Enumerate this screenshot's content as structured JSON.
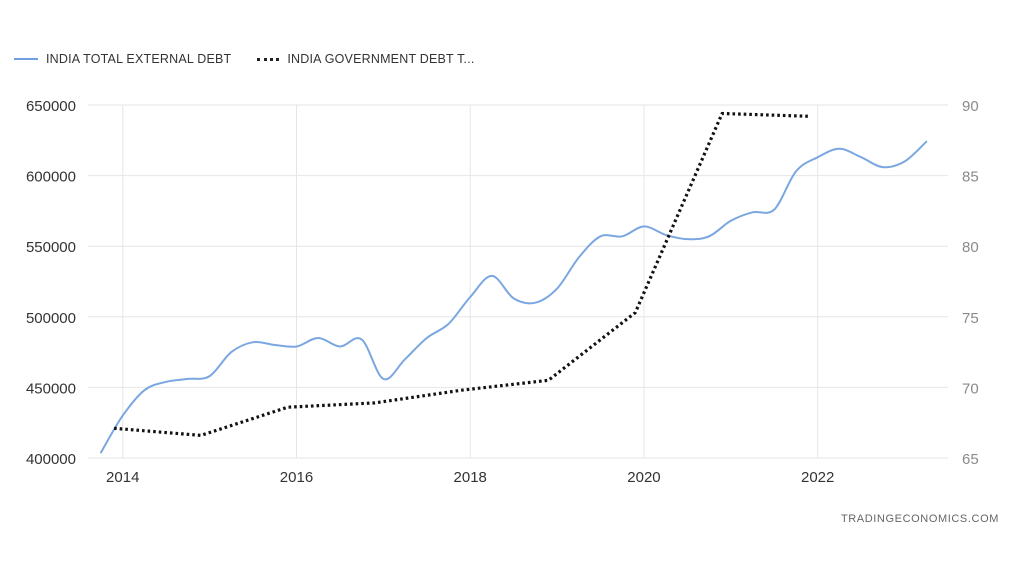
{
  "legend": {
    "series1": "INDIA TOTAL EXTERNAL DEBT",
    "series2": "INDIA GOVERNMENT DEBT T..."
  },
  "source": "TRADINGECONOMICS.COM",
  "colors": {
    "series1": "#7ba7e1",
    "series2": "#111111",
    "grid": "#e6e6e6"
  },
  "chart_data": {
    "type": "line",
    "title": "",
    "xlabel": "",
    "x_ticks": [
      "2014",
      "2016",
      "2018",
      "2020",
      "2022"
    ],
    "xlim": [
      2013.6,
      2023.5
    ],
    "y_left": {
      "ticks": [
        "400000",
        "450000",
        "500000",
        "550000",
        "600000",
        "650000"
      ],
      "ylim": [
        400000,
        650000
      ]
    },
    "y_right": {
      "ticks": [
        "65",
        "70",
        "75",
        "80",
        "85",
        "90"
      ],
      "ylim": [
        65,
        90
      ]
    },
    "grid": true,
    "legend_position": "top-left",
    "series": [
      {
        "name": "INDIA TOTAL EXTERNAL DEBT",
        "axis": "left",
        "style": "solid",
        "points": [
          [
            2013.75,
            404000
          ],
          [
            2014.0,
            430000
          ],
          [
            2014.25,
            448000
          ],
          [
            2014.5,
            454000
          ],
          [
            2014.75,
            456000
          ],
          [
            2015.0,
            458000
          ],
          [
            2015.25,
            475000
          ],
          [
            2015.5,
            482000
          ],
          [
            2015.75,
            480000
          ],
          [
            2016.0,
            479000
          ],
          [
            2016.25,
            485000
          ],
          [
            2016.5,
            479000
          ],
          [
            2016.75,
            484000
          ],
          [
            2017.0,
            456000
          ],
          [
            2017.25,
            470000
          ],
          [
            2017.5,
            485000
          ],
          [
            2017.75,
            495000
          ],
          [
            2018.0,
            514000
          ],
          [
            2018.25,
            529000
          ],
          [
            2018.5,
            513000
          ],
          [
            2018.75,
            510000
          ],
          [
            2019.0,
            520000
          ],
          [
            2019.25,
            542000
          ],
          [
            2019.5,
            557000
          ],
          [
            2019.75,
            557000
          ],
          [
            2020.0,
            564000
          ],
          [
            2020.25,
            558000
          ],
          [
            2020.5,
            555000
          ],
          [
            2020.75,
            557000
          ],
          [
            2021.0,
            568000
          ],
          [
            2021.25,
            574000
          ],
          [
            2021.5,
            576000
          ],
          [
            2021.75,
            603000
          ],
          [
            2022.0,
            613000
          ],
          [
            2022.25,
            619000
          ],
          [
            2022.5,
            613000
          ],
          [
            2022.75,
            606000
          ],
          [
            2023.0,
            610000
          ],
          [
            2023.25,
            624000
          ]
        ]
      },
      {
        "name": "INDIA GOVERNMENT DEBT T...",
        "axis": "right",
        "style": "dotted",
        "points": [
          [
            2013.9,
            67.1
          ],
          [
            2014.9,
            66.6
          ],
          [
            2015.9,
            68.6
          ],
          [
            2016.9,
            68.9
          ],
          [
            2017.9,
            69.8
          ],
          [
            2018.9,
            70.5
          ],
          [
            2019.9,
            75.3
          ],
          [
            2020.9,
            89.4
          ],
          [
            2021.9,
            89.2
          ]
        ]
      }
    ]
  }
}
